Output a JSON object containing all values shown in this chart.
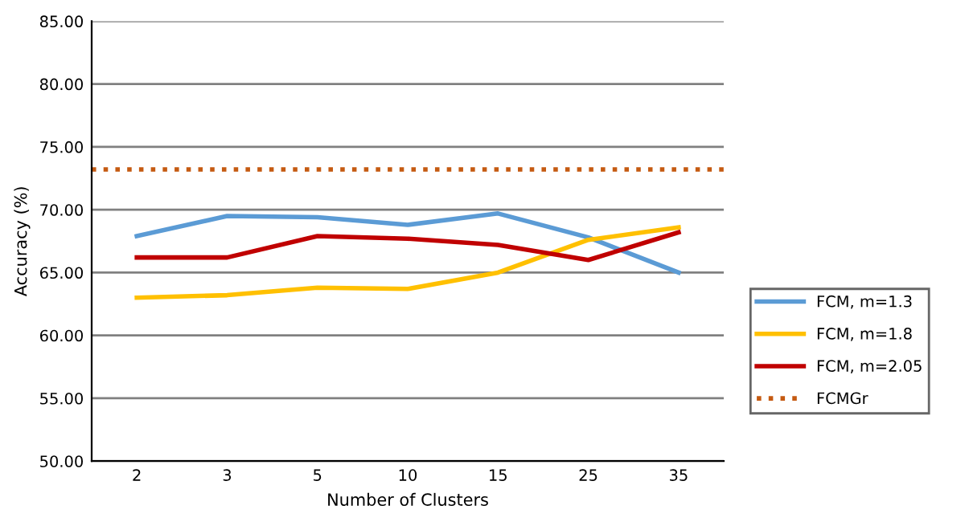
{
  "chart_data": {
    "type": "line",
    "xlabel": "Number of Clusters",
    "ylabel": "Accuracy (%)",
    "categories": [
      "2",
      "3",
      "5",
      "10",
      "15",
      "25",
      "35"
    ],
    "series": [
      {
        "name": "FCM, m=1.3",
        "color": "#5b9bd5",
        "values": [
          67.9,
          69.5,
          69.4,
          68.8,
          69.7,
          67.8,
          65.0
        ]
      },
      {
        "name": "FCM, m=1.8",
        "color": "#ffc000",
        "values": [
          63.0,
          63.2,
          63.8,
          63.7,
          65.0,
          67.6,
          68.6
        ]
      },
      {
        "name": "FCM, m=2.05",
        "color": "#c00000",
        "values": [
          66.2,
          66.2,
          67.9,
          67.7,
          67.2,
          66.0,
          68.2
        ]
      }
    ],
    "ref_lines": [
      {
        "axis": "y",
        "value": 73.2,
        "label": "FCMGr",
        "color": "#c55a11",
        "line_style": "dotted"
      }
    ],
    "ylim": [
      50,
      85
    ],
    "yticks": [
      {
        "value": 50,
        "label": "50.00"
      },
      {
        "value": 55,
        "label": "55.00"
      },
      {
        "value": 60,
        "label": "60.00"
      },
      {
        "value": 65,
        "label": "65.00"
      },
      {
        "value": 70,
        "label": "70.00"
      },
      {
        "value": 75,
        "label": "75.00"
      },
      {
        "value": 80,
        "label": "80.00"
      },
      {
        "value": 85,
        "label": "85.00"
      }
    ],
    "grid": "y",
    "legend": "right",
    "line_style": "solid",
    "marker": "none"
  }
}
